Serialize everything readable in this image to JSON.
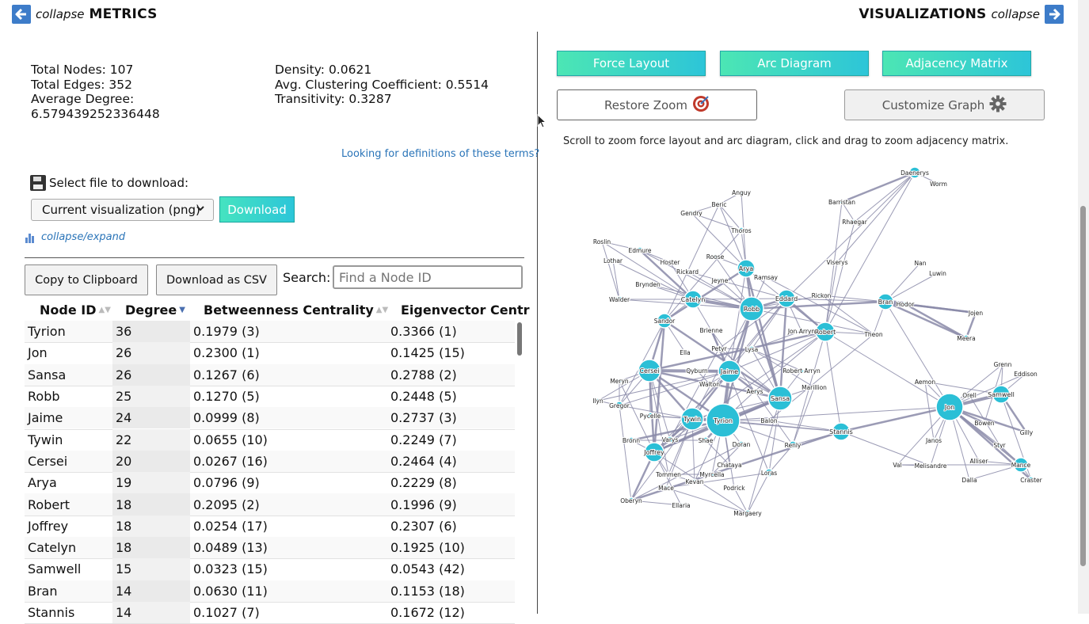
{
  "header": {
    "left_collapse": "collapse",
    "left_title": "METRICS",
    "right_title": "VISUALIZATIONS",
    "right_collapse": "collapse"
  },
  "metrics": {
    "total_nodes": "Total Nodes: 107",
    "total_edges": "Total Edges: 352",
    "avg_degree_label": "Average Degree:",
    "avg_degree_value": "6.579439252336448",
    "density": "Density: 0.0621",
    "avg_clustering": "Avg. Clustering Coefficient: 0.5514",
    "transitivity": "Transitivity: 0.3287",
    "definitions_link": "Looking for definitions of these terms?"
  },
  "download": {
    "label": "Select file to download:",
    "selected": "Current visualization (png)",
    "button": "Download",
    "collapse_expand": "collapse/expand"
  },
  "table_controls": {
    "copy": "Copy to Clipboard",
    "csv": "Download as CSV",
    "search_label": "Search:",
    "search_placeholder": "Find a Node ID"
  },
  "table": {
    "headers": [
      "Node ID",
      "Degree",
      "Betweenness Centrality",
      "Eigenvector Centr"
    ],
    "rows": [
      [
        "Tyrion",
        "36",
        "0.1979 (3)",
        "0.3366 (1)"
      ],
      [
        "Jon",
        "26",
        "0.2300 (1)",
        "0.1425 (15)"
      ],
      [
        "Sansa",
        "26",
        "0.1267 (6)",
        "0.2788 (2)"
      ],
      [
        "Robb",
        "25",
        "0.1270 (5)",
        "0.2448 (5)"
      ],
      [
        "Jaime",
        "24",
        "0.0999 (8)",
        "0.2737 (3)"
      ],
      [
        "Tywin",
        "22",
        "0.0655 (10)",
        "0.2249 (7)"
      ],
      [
        "Cersei",
        "20",
        "0.0267 (16)",
        "0.2464 (4)"
      ],
      [
        "Arya",
        "19",
        "0.0796 (9)",
        "0.2229 (8)"
      ],
      [
        "Robert",
        "18",
        "0.2095 (2)",
        "0.1996 (9)"
      ],
      [
        "Joffrey",
        "18",
        "0.0254 (17)",
        "0.2307 (6)"
      ],
      [
        "Catelyn",
        "18",
        "0.0489 (13)",
        "0.1925 (10)"
      ],
      [
        "Samwell",
        "15",
        "0.0323 (15)",
        "0.0543 (42)"
      ],
      [
        "Bran",
        "14",
        "0.0630 (11)",
        "0.1153 (18)"
      ],
      [
        "Stannis",
        "14",
        "0.1027 (7)",
        "0.1672 (12)"
      ]
    ]
  },
  "viz": {
    "force": "Force Layout",
    "arc": "Arc Diagram",
    "matrix": "Adjacency Matrix",
    "restore": "Restore Zoom",
    "customize": "Customize Graph",
    "hint": "Scroll to zoom force layout and arc diagram, click and drag to zoom adjacency matrix."
  },
  "graph": {
    "edge_color": "#8a8aa8",
    "node_color": "#2bbfd6",
    "nodes": [
      {
        "n": "Daenerys",
        "r": 7
      },
      {
        "n": "Worm",
        "r": 3
      },
      {
        "n": "Anguy",
        "r": 3
      },
      {
        "n": "Beric",
        "r": 3
      },
      {
        "n": "Gendry",
        "r": 3
      },
      {
        "n": "Barristan",
        "r": 3
      },
      {
        "n": "Rhaegar",
        "r": 3
      },
      {
        "n": "Thoros",
        "r": 4
      },
      {
        "n": "Roslin",
        "r": 3
      },
      {
        "n": "Edmure",
        "r": 4
      },
      {
        "n": "Lothar",
        "r": 3
      },
      {
        "n": "Hoster",
        "r": 3
      },
      {
        "n": "Roose",
        "r": 3
      },
      {
        "n": "Arya",
        "r": 11
      },
      {
        "n": "Viserys",
        "r": 3
      },
      {
        "n": "Rickard",
        "r": 3
      },
      {
        "n": "Jeyne",
        "r": 3
      },
      {
        "n": "Ramsay",
        "r": 3
      },
      {
        "n": "Nan",
        "r": 3
      },
      {
        "n": "Luwin",
        "r": 3
      },
      {
        "n": "Brynden",
        "r": 3
      },
      {
        "n": "Walder",
        "r": 4
      },
      {
        "n": "Catelyn",
        "r": 11
      },
      {
        "n": "Robb",
        "r": 15
      },
      {
        "n": "Eddard",
        "r": 11
      },
      {
        "n": "Rickon",
        "r": 3
      },
      {
        "n": "Bran",
        "r": 10
      },
      {
        "n": "Hodor",
        "r": 3
      },
      {
        "n": "Jojen",
        "r": 3
      },
      {
        "n": "Sandor",
        "r": 9
      },
      {
        "n": "Brienne",
        "r": 3
      },
      {
        "n": "Jon Arryn",
        "r": 3
      },
      {
        "n": "Robert",
        "r": 12
      },
      {
        "n": "Theon",
        "r": 3
      },
      {
        "n": "Meera",
        "r": 4
      },
      {
        "n": "Petyr",
        "r": 3
      },
      {
        "n": "Ella",
        "r": 3
      },
      {
        "n": "Lysa",
        "r": 4
      },
      {
        "n": "Cersei",
        "r": 14
      },
      {
        "n": "Qyburn",
        "r": 3
      },
      {
        "n": "Jaime",
        "r": 14
      },
      {
        "n": "Robert Arryn",
        "r": 3
      },
      {
        "n": "Grenn",
        "r": 3
      },
      {
        "n": "Eddison",
        "r": 3
      },
      {
        "n": "Meryn",
        "r": 3
      },
      {
        "n": "Walton",
        "r": 3
      },
      {
        "n": "Marillion",
        "r": 3
      },
      {
        "n": "Aemon",
        "r": 3
      },
      {
        "n": "Ilyn",
        "r": 3
      },
      {
        "n": "Aerys",
        "r": 3
      },
      {
        "n": "Sansa",
        "r": 15
      },
      {
        "n": "Orell",
        "r": 3
      },
      {
        "n": "Samwell",
        "r": 11
      },
      {
        "n": "Gregor",
        "r": 5
      },
      {
        "n": "Jon",
        "r": 17
      },
      {
        "n": "Pycelle",
        "r": 4
      },
      {
        "n": "Tywin",
        "r": 14
      },
      {
        "n": "Tyrion",
        "r": 21
      },
      {
        "n": "Balon",
        "r": 3
      },
      {
        "n": "Bowen",
        "r": 3
      },
      {
        "n": "Stannis",
        "r": 11
      },
      {
        "n": "Bronn",
        "r": 4
      },
      {
        "n": "Varys",
        "r": 4
      },
      {
        "n": "Shae",
        "r": 4
      },
      {
        "n": "Doran",
        "r": 4
      },
      {
        "n": "Renly",
        "r": 5
      },
      {
        "n": "Janos",
        "r": 3
      },
      {
        "n": "Gilly",
        "r": 4
      },
      {
        "n": "Joffrey",
        "r": 12
      },
      {
        "n": "Styr",
        "r": 3
      },
      {
        "n": "Chataya",
        "r": 3
      },
      {
        "n": "Val",
        "r": 3
      },
      {
        "n": "Melisandre",
        "r": 3
      },
      {
        "n": "Alliser",
        "r": 3
      },
      {
        "n": "Mance",
        "r": 9
      },
      {
        "n": "Tommen",
        "r": 3
      },
      {
        "n": "Myrcella",
        "r": 3
      },
      {
        "n": "Loras",
        "r": 5
      },
      {
        "n": "Oberyn",
        "r": 4
      },
      {
        "n": "Dalla",
        "r": 3
      },
      {
        "n": "Craster",
        "r": 4
      },
      {
        "n": "Kevan",
        "r": 3
      },
      {
        "n": "Mace",
        "r": 3
      },
      {
        "n": "Podrick",
        "r": 3
      },
      {
        "n": "Ellaria",
        "r": 3
      },
      {
        "n": "Margaery",
        "r": 4
      }
    ]
  }
}
